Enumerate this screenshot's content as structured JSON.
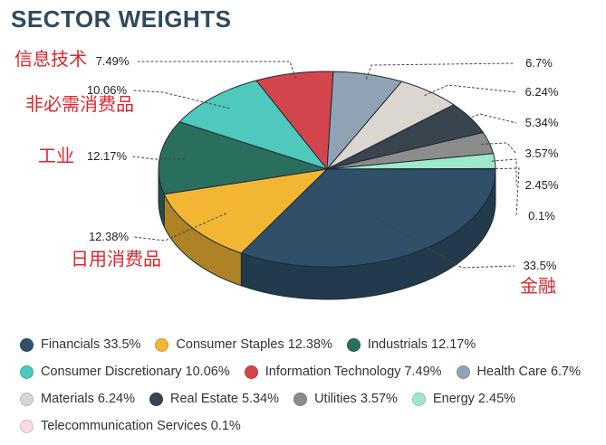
{
  "title": "SECTOR WEIGHTS",
  "chart_data": {
    "type": "pie",
    "title": "SECTOR WEIGHTS",
    "series": [
      {
        "name": "Financials",
        "value": 33.5,
        "pct_label": "33.5%",
        "cn_label": "金融",
        "color": "#2f5068"
      },
      {
        "name": "Consumer Staples",
        "value": 12.38,
        "pct_label": "12.38%",
        "cn_label": "日用消费品",
        "color": "#f2b633"
      },
      {
        "name": "Industrials",
        "value": 12.17,
        "pct_label": "12.17%",
        "cn_label": "工业",
        "color": "#2a6e5e"
      },
      {
        "name": "Consumer Discretionary",
        "value": 10.06,
        "pct_label": "10.06%",
        "cn_label": "非必需消费品",
        "color": "#4fc9bd"
      },
      {
        "name": "Information Technology",
        "value": 7.49,
        "pct_label": "7.49%",
        "cn_label": "信息技术",
        "color": "#d2454d"
      },
      {
        "name": "Health Care",
        "value": 6.7,
        "pct_label": "6.7%",
        "cn_label": "",
        "color": "#8fa3b4"
      },
      {
        "name": "Materials",
        "value": 6.24,
        "pct_label": "6.24%",
        "cn_label": "",
        "color": "#dcd6d0"
      },
      {
        "name": "Real Estate",
        "value": 5.34,
        "pct_label": "5.34%",
        "cn_label": "",
        "color": "#38444e"
      },
      {
        "name": "Utilities",
        "value": 3.57,
        "pct_label": "3.57%",
        "cn_label": "",
        "color": "#8c8c8c"
      },
      {
        "name": "Energy",
        "value": 2.45,
        "pct_label": "2.45%",
        "cn_label": "",
        "color": "#9fe9c8"
      },
      {
        "name": "Telecommunication Services",
        "value": 0.1,
        "pct_label": "0.1%",
        "cn_label": "",
        "color": "#f6dde4"
      }
    ],
    "legend_position": "bottom"
  },
  "legend": {
    "rows": [
      [
        "Financials 33.5%",
        "Consumer Staples 12.38%",
        "Industrials 12.17%"
      ],
      [
        "Consumer Discretionary 10.06%",
        "Information Technology 7.49%",
        "Health Care 6.7%"
      ],
      [
        "Materials 6.24%",
        "Real Estate 5.34%",
        "Utilities 3.57%",
        "Energy 2.45%"
      ],
      [
        "Telecommunication Services 0.1%"
      ]
    ]
  }
}
